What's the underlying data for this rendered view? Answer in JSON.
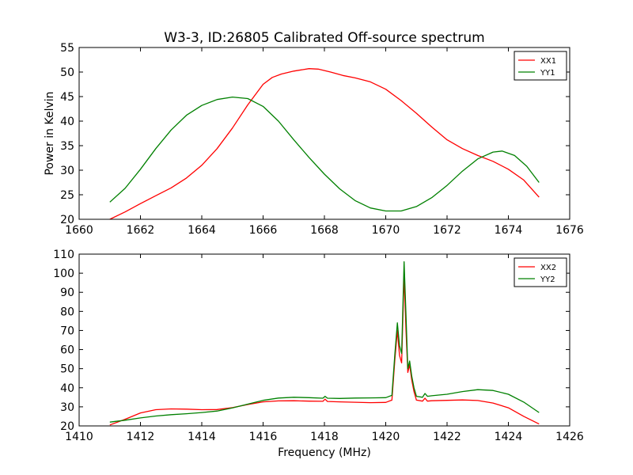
{
  "figure": {
    "title": "W3-3, ID:26805 Calibrated Off-source spectrum"
  },
  "chart_data": [
    {
      "type": "line",
      "title": "W3-3, ID:26805 Calibrated Off-source spectrum",
      "xlabel": "",
      "ylabel": "Power in Kelvin",
      "xlim": [
        1660,
        1676
      ],
      "ylim": [
        20,
        55
      ],
      "xticks": [
        1660,
        1662,
        1664,
        1666,
        1668,
        1670,
        1672,
        1674,
        1676
      ],
      "yticks": [
        20,
        25,
        30,
        35,
        40,
        45,
        50,
        55
      ],
      "grid": false,
      "legend": "top-right",
      "series": [
        {
          "name": "XX1",
          "color": "#ff0000",
          "x": [
            1661.0,
            1661.5,
            1662.0,
            1662.5,
            1663.0,
            1663.5,
            1664.0,
            1664.5,
            1665.0,
            1665.5,
            1666.0,
            1666.3,
            1666.6,
            1667.0,
            1667.5,
            1667.8,
            1668.2,
            1668.6,
            1669.0,
            1669.5,
            1670.0,
            1670.5,
            1671.0,
            1671.5,
            1672.0,
            1672.5,
            1673.0,
            1673.5,
            1674.0,
            1674.5,
            1675.0
          ],
          "y": [
            20.0,
            21.5,
            23.2,
            24.8,
            26.4,
            28.4,
            31.0,
            34.4,
            38.6,
            43.3,
            47.5,
            48.9,
            49.6,
            50.2,
            50.7,
            50.6,
            50.0,
            49.3,
            48.8,
            48.0,
            46.5,
            44.2,
            41.6,
            38.8,
            36.2,
            34.4,
            33.0,
            31.8,
            30.2,
            28.0,
            24.5
          ]
        },
        {
          "name": "YY1",
          "color": "#008000",
          "x": [
            1661.0,
            1661.5,
            1662.0,
            1662.5,
            1663.0,
            1663.5,
            1664.0,
            1664.5,
            1665.0,
            1665.5,
            1666.0,
            1666.5,
            1667.0,
            1667.5,
            1668.0,
            1668.5,
            1669.0,
            1669.5,
            1670.0,
            1670.5,
            1671.0,
            1671.5,
            1672.0,
            1672.5,
            1673.0,
            1673.5,
            1673.8,
            1674.2,
            1674.6,
            1675.0
          ],
          "y": [
            23.5,
            26.3,
            30.2,
            34.4,
            38.2,
            41.2,
            43.2,
            44.4,
            44.9,
            44.6,
            43.0,
            40.0,
            36.2,
            32.6,
            29.2,
            26.2,
            23.8,
            22.3,
            21.7,
            21.7,
            22.6,
            24.4,
            26.9,
            29.8,
            32.3,
            33.7,
            33.9,
            33.0,
            30.8,
            27.5
          ]
        }
      ]
    },
    {
      "type": "line",
      "title": "",
      "xlabel": "Frequency (MHz)",
      "ylabel": "",
      "xlim": [
        1410,
        1426
      ],
      "ylim": [
        20,
        110
      ],
      "xticks": [
        1410,
        1412,
        1414,
        1416,
        1418,
        1420,
        1422,
        1424,
        1426
      ],
      "yticks": [
        20,
        30,
        40,
        50,
        60,
        70,
        80,
        90,
        100,
        110
      ],
      "grid": false,
      "legend": "top-right",
      "series": [
        {
          "name": "XX2",
          "color": "#ff0000",
          "x": [
            1411.0,
            1411.5,
            1412.0,
            1412.5,
            1413.0,
            1413.5,
            1414.0,
            1414.5,
            1415.0,
            1415.5,
            1416.0,
            1416.5,
            1417.0,
            1417.5,
            1417.95,
            1418.02,
            1418.1,
            1418.5,
            1419.0,
            1419.5,
            1420.0,
            1420.2,
            1420.3,
            1420.38,
            1420.45,
            1420.52,
            1420.6,
            1420.66,
            1420.72,
            1420.78,
            1420.85,
            1420.92,
            1421.0,
            1421.2,
            1421.28,
            1421.36,
            1421.5,
            1422.0,
            1422.5,
            1423.0,
            1423.5,
            1424.0,
            1424.5,
            1425.0
          ],
          "y": [
            20.5,
            23.5,
            26.8,
            28.5,
            28.9,
            28.8,
            28.5,
            28.6,
            29.6,
            31.2,
            32.6,
            33.1,
            33.2,
            33.0,
            32.9,
            34.0,
            32.8,
            32.6,
            32.4,
            32.2,
            32.3,
            33.5,
            55.0,
            70.0,
            57.0,
            53.0,
            99.0,
            70.0,
            48.0,
            52.0,
            44.0,
            38.0,
            33.5,
            33.0,
            34.5,
            33.0,
            33.2,
            33.4,
            33.6,
            33.3,
            32.0,
            29.5,
            25.0,
            21.0
          ]
        },
        {
          "name": "YY2",
          "color": "#008000",
          "x": [
            1411.0,
            1411.5,
            1412.0,
            1412.5,
            1413.0,
            1413.5,
            1414.0,
            1414.5,
            1415.0,
            1415.5,
            1416.0,
            1416.5,
            1417.0,
            1417.5,
            1417.95,
            1418.02,
            1418.1,
            1418.5,
            1419.0,
            1419.5,
            1420.0,
            1420.2,
            1420.3,
            1420.38,
            1420.45,
            1420.52,
            1420.6,
            1420.66,
            1420.72,
            1420.78,
            1420.85,
            1420.92,
            1421.0,
            1421.2,
            1421.28,
            1421.36,
            1421.5,
            1422.0,
            1422.5,
            1423.0,
            1423.5,
            1424.0,
            1424.5,
            1425.0
          ],
          "y": [
            22.0,
            23.0,
            24.2,
            25.2,
            25.9,
            26.4,
            27.0,
            27.8,
            29.4,
            31.4,
            33.4,
            34.6,
            35.0,
            34.8,
            34.5,
            35.5,
            34.5,
            34.4,
            34.6,
            34.7,
            34.8,
            36.0,
            58.0,
            74.0,
            62.0,
            58.0,
            106.0,
            78.0,
            50.0,
            54.0,
            46.0,
            40.0,
            35.5,
            35.0,
            37.0,
            35.5,
            35.8,
            36.6,
            38.0,
            39.0,
            38.6,
            36.6,
            32.5,
            27.0
          ]
        }
      ]
    }
  ]
}
